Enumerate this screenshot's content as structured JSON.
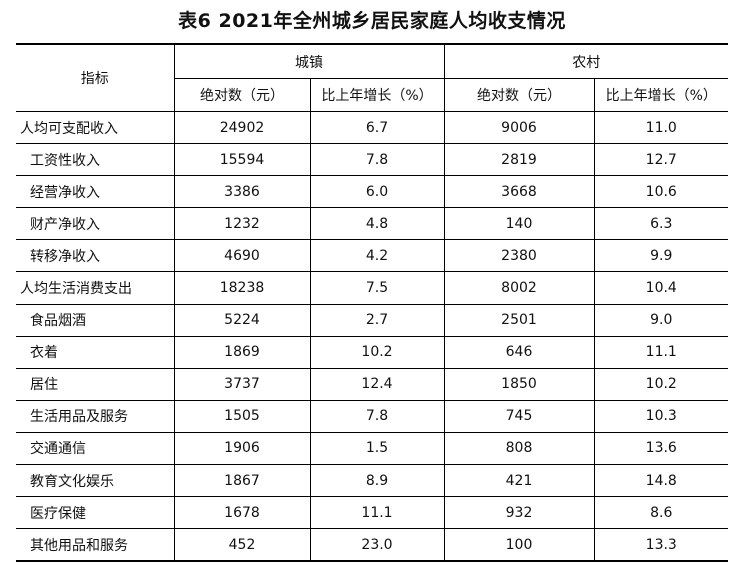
{
  "title": "表6  2021年全州城乡居民家庭人均收支情况",
  "header": {
    "indicator": "指标",
    "urban": "城镇",
    "rural": "农村",
    "urban_abs": "绝对数（元）",
    "urban_growth": "比上年增长（%）",
    "rural_abs": "绝对数（元）",
    "rural_growth": "比上年增长（%）"
  },
  "rows": [
    {
      "label": "人均可支配收入",
      "indent": false,
      "urban_abs": "24902",
      "urban_growth": "6.7",
      "rural_abs": "9006",
      "rural_growth": "11.0"
    },
    {
      "label": "工资性收入",
      "indent": true,
      "urban_abs": "15594",
      "urban_growth": "7.8",
      "rural_abs": "2819",
      "rural_growth": "12.7"
    },
    {
      "label": "经营净收入",
      "indent": true,
      "urban_abs": "3386",
      "urban_growth": "6.0",
      "rural_abs": "3668",
      "rural_growth": "10.6"
    },
    {
      "label": "财产净收入",
      "indent": true,
      "urban_abs": "1232",
      "urban_growth": "4.8",
      "rural_abs": "140",
      "rural_growth": "6.3"
    },
    {
      "label": "转移净收入",
      "indent": true,
      "urban_abs": "4690",
      "urban_growth": "4.2",
      "rural_abs": "2380",
      "rural_growth": "9.9"
    },
    {
      "label": "人均生活消费支出",
      "indent": false,
      "urban_abs": "18238",
      "urban_growth": "7.5",
      "rural_abs": "8002",
      "rural_growth": "10.4"
    },
    {
      "label": "食品烟酒",
      "indent": true,
      "urban_abs": "5224",
      "urban_growth": "2.7",
      "rural_abs": "2501",
      "rural_growth": "9.0"
    },
    {
      "label": "衣着",
      "indent": true,
      "urban_abs": "1869",
      "urban_growth": "10.2",
      "rural_abs": "646",
      "rural_growth": "11.1"
    },
    {
      "label": "居住",
      "indent": true,
      "urban_abs": "3737",
      "urban_growth": "12.4",
      "rural_abs": "1850",
      "rural_growth": "10.2"
    },
    {
      "label": "生活用品及服务",
      "indent": true,
      "urban_abs": "1505",
      "urban_growth": "7.8",
      "rural_abs": "745",
      "rural_growth": "10.3"
    },
    {
      "label": "交通通信",
      "indent": true,
      "urban_abs": "1906",
      "urban_growth": "1.5",
      "rural_abs": "808",
      "rural_growth": "13.6"
    },
    {
      "label": "教育文化娱乐",
      "indent": true,
      "urban_abs": "1867",
      "urban_growth": "8.9",
      "rural_abs": "421",
      "rural_growth": "14.8"
    },
    {
      "label": "医疗保健",
      "indent": true,
      "urban_abs": "1678",
      "urban_growth": "11.1",
      "rural_abs": "932",
      "rural_growth": "8.6"
    },
    {
      "label": "其他用品和服务",
      "indent": true,
      "urban_abs": "452",
      "urban_growth": "23.0",
      "rural_abs": "100",
      "rural_growth": "13.3"
    }
  ]
}
